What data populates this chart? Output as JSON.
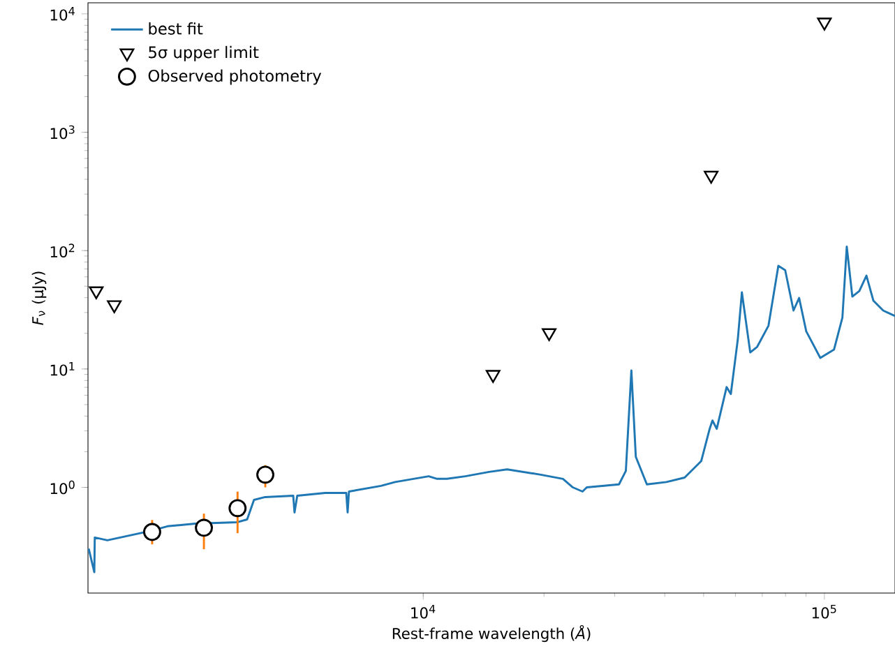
{
  "chart_data": {
    "type": "line",
    "xlabel": "Rest-frame wavelength (*Å*)",
    "ylabel": "*F*$_{ν}$ (μJy)",
    "log": "xy",
    "grid": false,
    "legend": "top left",
    "xlim": [
      1460,
      150000
    ],
    "ylim": [
      0.128,
      12400
    ],
    "xticks": [
      {
        "value": 10000,
        "label": "10$^{4}$"
      },
      {
        "value": 100000,
        "label": "10$^{5}$"
      }
    ],
    "yticks": [
      {
        "value": 1,
        "label": "10$^{0}$"
      },
      {
        "value": 10,
        "label": "10$^{1}$"
      },
      {
        "value": 100,
        "label": "10$^{2}$"
      },
      {
        "value": 1000,
        "label": "10$^{3}$"
      },
      {
        "value": 10000,
        "label": "10$^{4}$"
      }
    ],
    "series": [
      {
        "name": "best fit",
        "color": "#1f77b4",
        "marker": "none",
        "line_style": "solid",
        "x": [
          1466,
          1514,
          1518,
          1632,
          1963,
          2110,
          2303,
          2704,
          3443,
          3640,
          3786,
          4036,
          4742,
          4777,
          4853,
          5700,
          6430,
          6480,
          6530,
          7850,
          8510,
          10320,
          10830,
          11460,
          12730,
          14590,
          16190,
          19630,
          22300,
          23600,
          24950,
          25570,
          30760,
          32000,
          33030,
          33880,
          36100,
          40380,
          44830,
          49330,
          51760,
          52600,
          53910,
          57050,
          58450,
          60830,
          62280,
          65340,
          68000,
          72560,
          76780,
          79860,
          83750,
          86500,
          90110,
          97680,
          105700,
          110900,
          113700,
          117400,
          122200,
          127300,
          132500,
          140100,
          150000
        ],
        "values": [
          0.304,
          0.192,
          0.377,
          0.357,
          0.409,
          0.432,
          0.469,
          0.494,
          0.508,
          0.536,
          0.784,
          0.828,
          0.85,
          0.614,
          0.85,
          0.897,
          0.897,
          0.614,
          0.922,
          1.03,
          1.11,
          1.24,
          1.18,
          1.18,
          1.24,
          1.35,
          1.42,
          1.28,
          1.18,
          1.0,
          0.922,
          1.0,
          1.06,
          1.38,
          9.73,
          1.81,
          1.06,
          1.11,
          1.21,
          1.67,
          3.12,
          3.67,
          3.12,
          7.03,
          6.14,
          17.7,
          44.4,
          13.8,
          15.4,
          23.2,
          74.3,
          68.4,
          31.2,
          39.8,
          20.8,
          12.4,
          14.6,
          27.2,
          108,
          40.9,
          45.6,
          61.4,
          37.7,
          31.2,
          28.0
        ]
      },
      {
        "name": "5σ upper limit",
        "type": "scatter",
        "color": "#000000",
        "marker": "triangle",
        "x": [
          1531,
          1698,
          14930,
          20600,
          52200,
          100000
        ],
        "values": [
          45.6,
          34.8,
          8.97,
          20.2,
          432,
          8500
        ]
      },
      {
        "name": "Observed photometry",
        "type": "scatter",
        "color": "#000000",
        "marker": "circle",
        "x": [
          2110,
          2840,
          3445,
          4040
        ],
        "values": [
          0.42,
          0.456,
          0.667,
          1.28
        ],
        "errors": [
          [
            0.33,
            0.53
          ],
          [
            0.3,
            0.6
          ],
          [
            0.41,
            0.92
          ],
          [
            1.0,
            1.54
          ]
        ]
      }
    ]
  }
}
